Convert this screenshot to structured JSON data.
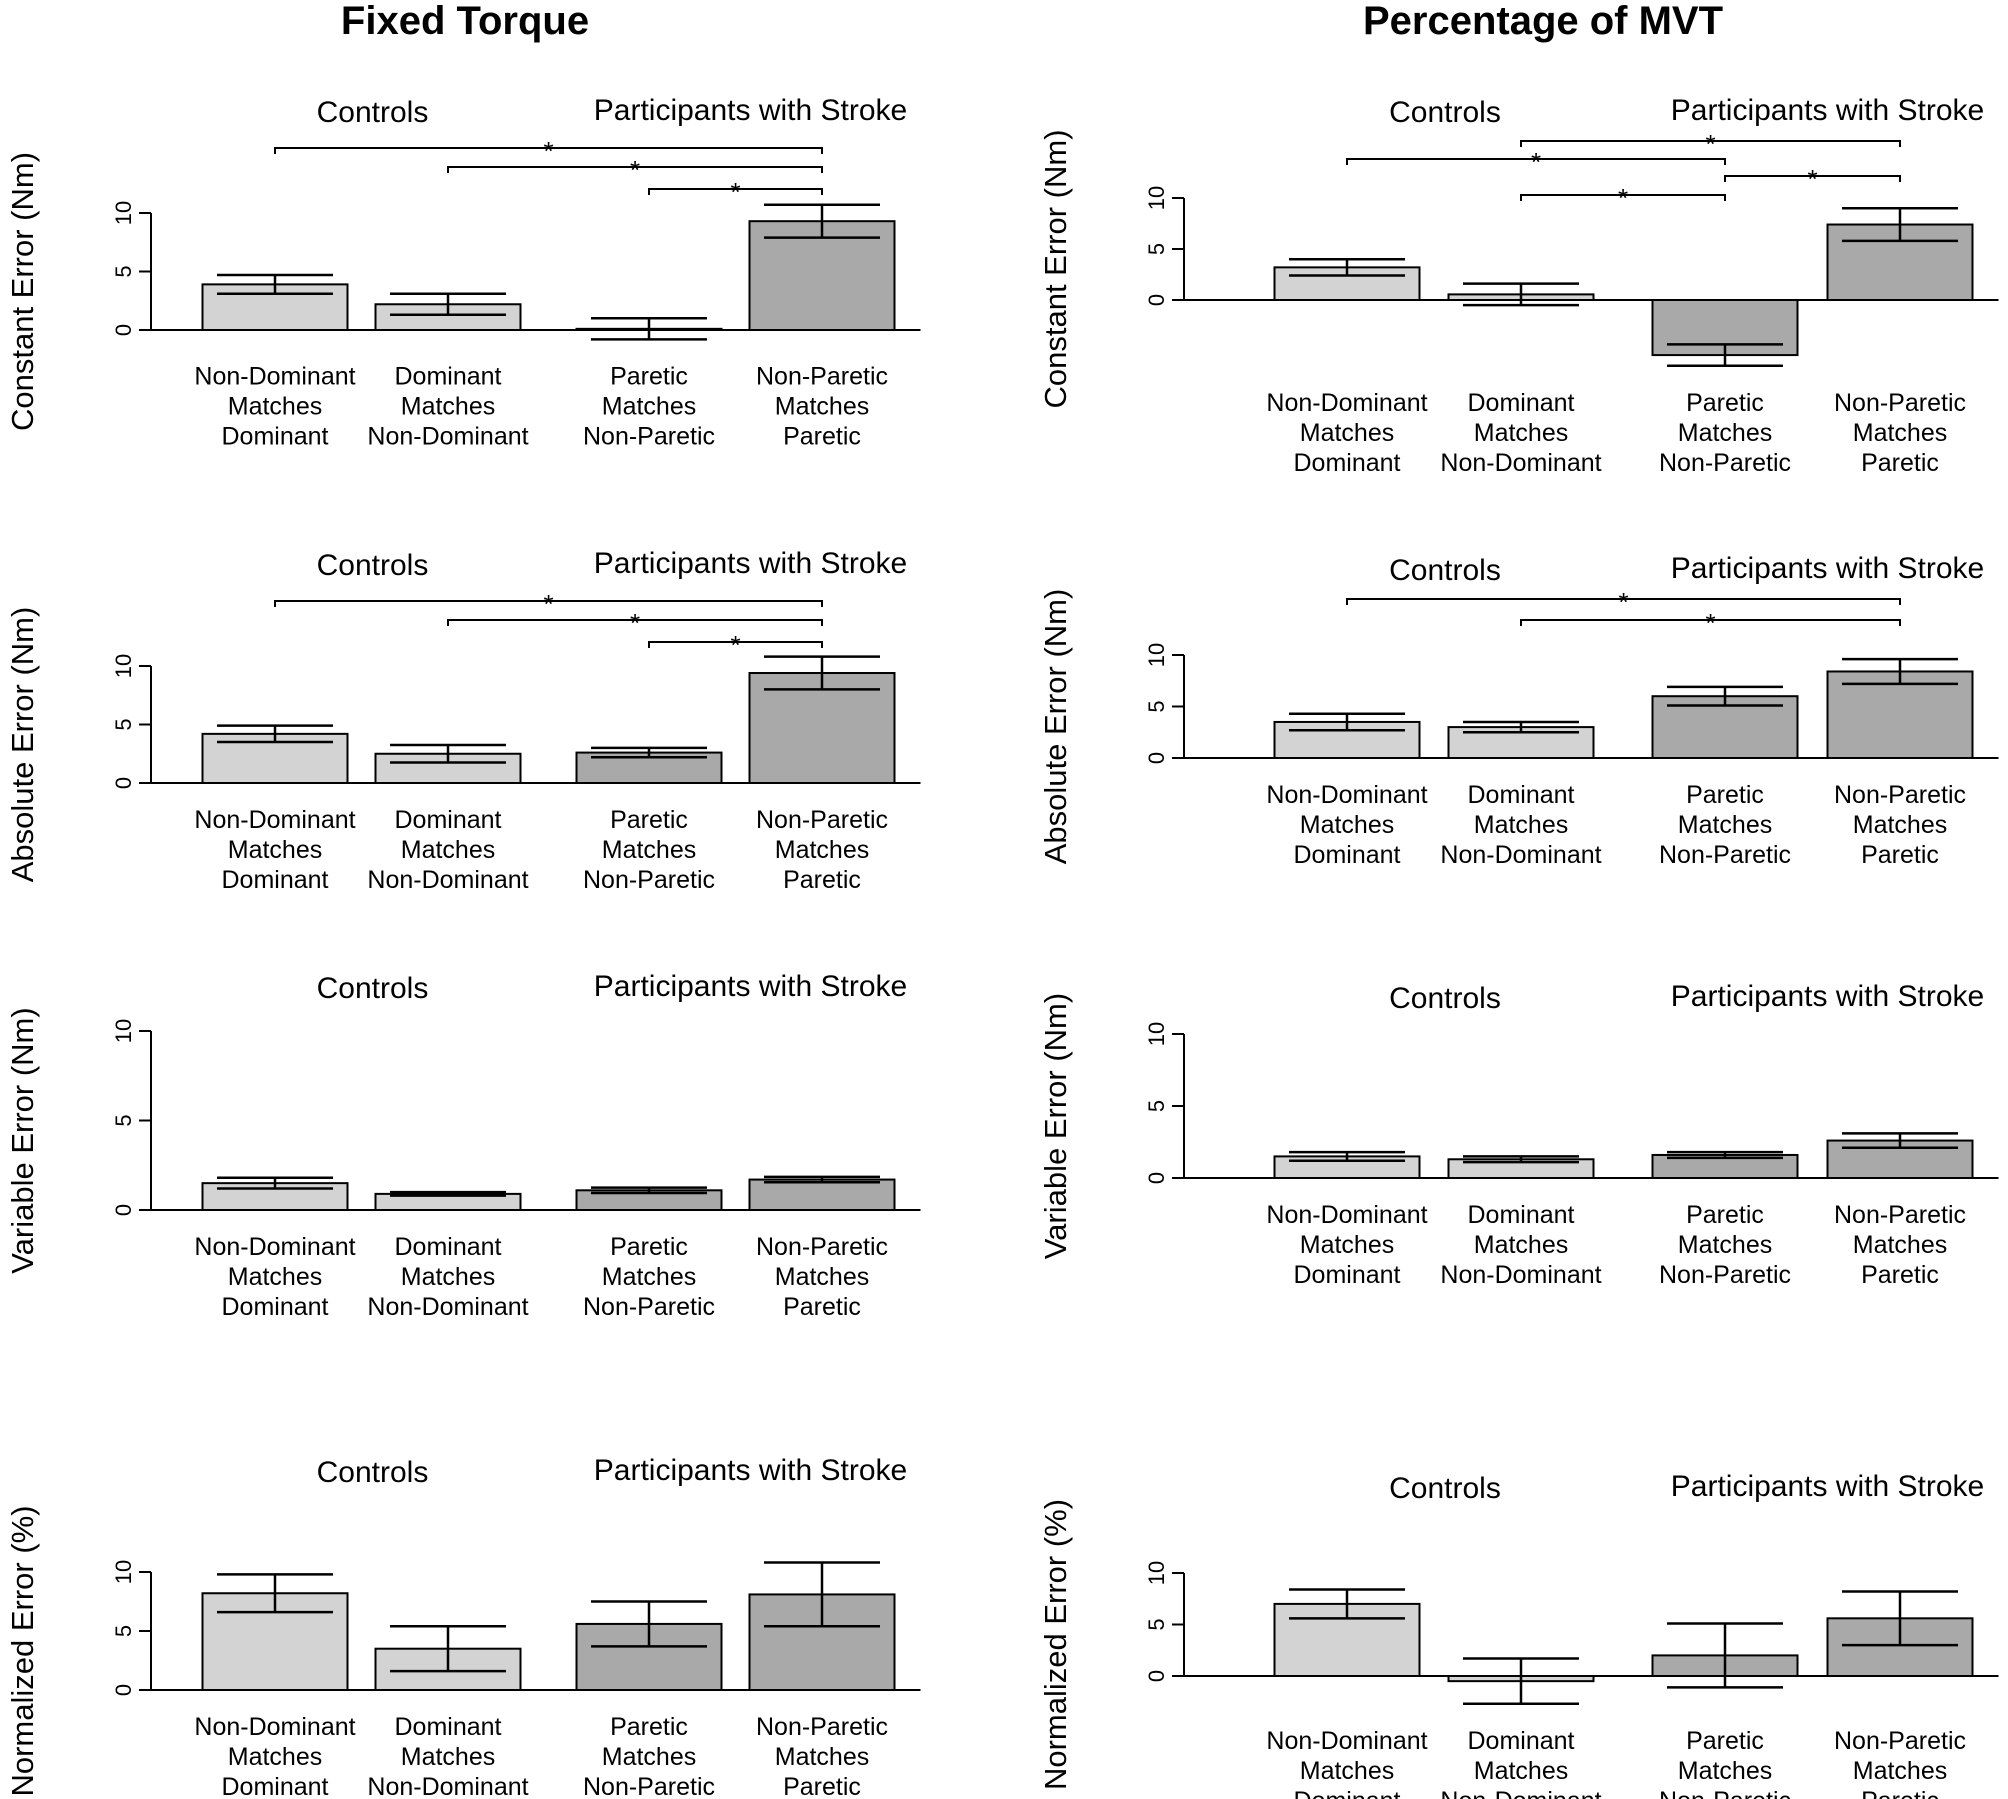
{
  "columns": [
    "Fixed Torque",
    "Percentage of MVT"
  ],
  "colors": {
    "controls": "#d3d3d3",
    "stroke": "#a9a9a9"
  },
  "chart_data": [
    {
      "type": "bar",
      "column": "Fixed Torque",
      "ylabel": "Constant Error (Nm)",
      "ylim": [
        0,
        10
      ],
      "yticks": [
        0,
        5,
        10
      ],
      "groups": [
        "Controls",
        "Participants with Stroke"
      ],
      "categories": [
        "Non-Dominant\nMatches\nDominant",
        "Dominant\nMatches\nNon-Dominant",
        "Paretic\nMatches\nNon-Paretic",
        "Non-Paretic\nMatches\nParetic"
      ],
      "values": [
        3.9,
        2.2,
        0.1,
        9.3
      ],
      "errors": [
        0.8,
        0.9,
        0.9,
        1.4
      ],
      "significance": [
        {
          "from": 2,
          "to": 3,
          "label": "*"
        },
        {
          "from": 1,
          "to": 3,
          "label": "*"
        },
        {
          "from": 0,
          "to": 3,
          "label": "*"
        }
      ]
    },
    {
      "type": "bar",
      "column": "Fixed Torque",
      "ylabel": "Absolute Error (Nm)",
      "ylim": [
        0,
        10
      ],
      "yticks": [
        0,
        5,
        10
      ],
      "groups": [
        "Controls",
        "Participants with Stroke"
      ],
      "categories": [
        "Non-Dominant\nMatches\nDominant",
        "Dominant\nMatches\nNon-Dominant",
        "Paretic\nMatches\nNon-Paretic",
        "Non-Paretic\nMatches\nParetic"
      ],
      "values": [
        4.2,
        2.5,
        2.6,
        9.4
      ],
      "errors": [
        0.7,
        0.75,
        0.4,
        1.4
      ],
      "significance": [
        {
          "from": 2,
          "to": 3,
          "label": "*"
        },
        {
          "from": 1,
          "to": 3,
          "label": "*"
        },
        {
          "from": 0,
          "to": 3,
          "label": "*"
        }
      ]
    },
    {
      "type": "bar",
      "column": "Fixed Torque",
      "ylabel": "Variable Error (Nm)",
      "ylim": [
        0,
        10
      ],
      "yticks": [
        0,
        5,
        10
      ],
      "groups": [
        "Controls",
        "Participants with Stroke"
      ],
      "categories": [
        "Non-Dominant\nMatches\nDominant",
        "Dominant\nMatches\nNon-Dominant",
        "Paretic\nMatches\nNon-Paretic",
        "Non-Paretic\nMatches\nParetic"
      ],
      "values": [
        1.5,
        0.9,
        1.1,
        1.7
      ],
      "errors": [
        0.3,
        0.1,
        0.15,
        0.15
      ],
      "significance": []
    },
    {
      "type": "bar",
      "column": "Fixed Torque",
      "ylabel": "Normalized Error (%)",
      "ylim": [
        0,
        10
      ],
      "yticks": [
        0,
        5,
        10
      ],
      "groups": [
        "Controls",
        "Participants with Stroke"
      ],
      "categories": [
        "Non-Dominant\nMatches\nDominant",
        "Dominant\nMatches\nNon-Dominant",
        "Paretic\nMatches\nNon-Paretic",
        "Non-Paretic\nMatches\nParetic"
      ],
      "values": [
        8.2,
        3.5,
        5.6,
        8.1
      ],
      "errors": [
        1.6,
        1.9,
        1.9,
        2.7
      ],
      "significance": []
    },
    {
      "type": "bar",
      "column": "Percentage of MVT",
      "ylabel": "Constant Error (Nm)",
      "ylim": [
        -6,
        10
      ],
      "yticks": [
        0,
        5,
        10
      ],
      "groups": [
        "Controls",
        "Participants with Stroke"
      ],
      "categories": [
        "Non-Dominant\nMatches\nDominant",
        "Dominant\nMatches\nNon-Dominant",
        "Paretic\nMatches\nNon-Paretic",
        "Non-Paretic\nMatches\nParetic"
      ],
      "values": [
        3.2,
        0.55,
        -5.4,
        7.4
      ],
      "errors": [
        0.8,
        1.05,
        1.05,
        1.6
      ],
      "significance": [
        {
          "from": 1,
          "to": 2,
          "label": "*"
        },
        {
          "from": 2,
          "to": 3,
          "label": "*"
        },
        {
          "from": 0,
          "to": 2,
          "label": "*"
        },
        {
          "from": 1,
          "to": 3,
          "label": "*"
        }
      ]
    },
    {
      "type": "bar",
      "column": "Percentage of MVT",
      "ylabel": "Absolute Error (Nm)",
      "ylim": [
        0,
        10
      ],
      "yticks": [
        0,
        5,
        10
      ],
      "groups": [
        "Controls",
        "Participants with Stroke"
      ],
      "categories": [
        "Non-Dominant\nMatches\nDominant",
        "Dominant\nMatches\nNon-Dominant",
        "Paretic\nMatches\nNon-Paretic",
        "Non-Paretic\nMatches\nParetic"
      ],
      "values": [
        3.5,
        3.0,
        6.0,
        8.4
      ],
      "errors": [
        0.8,
        0.5,
        0.9,
        1.2
      ],
      "significance": [
        {
          "from": 1,
          "to": 3,
          "label": "*"
        },
        {
          "from": 0,
          "to": 3,
          "label": "*"
        }
      ]
    },
    {
      "type": "bar",
      "column": "Percentage of MVT",
      "ylabel": "Variable Error (Nm)",
      "ylim": [
        0,
        10
      ],
      "yticks": [
        0,
        5,
        10
      ],
      "groups": [
        "Controls",
        "Participants with Stroke"
      ],
      "categories": [
        "Non-Dominant\nMatches\nDominant",
        "Dominant\nMatches\nNon-Dominant",
        "Paretic\nMatches\nNon-Paretic",
        "Non-Paretic\nMatches\nParetic"
      ],
      "values": [
        1.5,
        1.3,
        1.6,
        2.6
      ],
      "errors": [
        0.3,
        0.2,
        0.2,
        0.5
      ],
      "significance": []
    },
    {
      "type": "bar",
      "column": "Percentage of MVT",
      "ylabel": "Normalized Error (%)",
      "ylim": [
        -3,
        10
      ],
      "yticks": [
        0,
        5,
        10
      ],
      "groups": [
        "Controls",
        "Participants with Stroke"
      ],
      "categories": [
        "Non-Dominant\nMatches\nDominant",
        "Dominant\nMatches\nNon-Dominant",
        "Paretic\nMatches\nNon-Paretic",
        "Non-Paretic\nMatches\nParetic"
      ],
      "values": [
        7.0,
        -0.5,
        2.0,
        5.6
      ],
      "errors": [
        1.4,
        2.2,
        3.1,
        2.6
      ],
      "significance": []
    }
  ]
}
